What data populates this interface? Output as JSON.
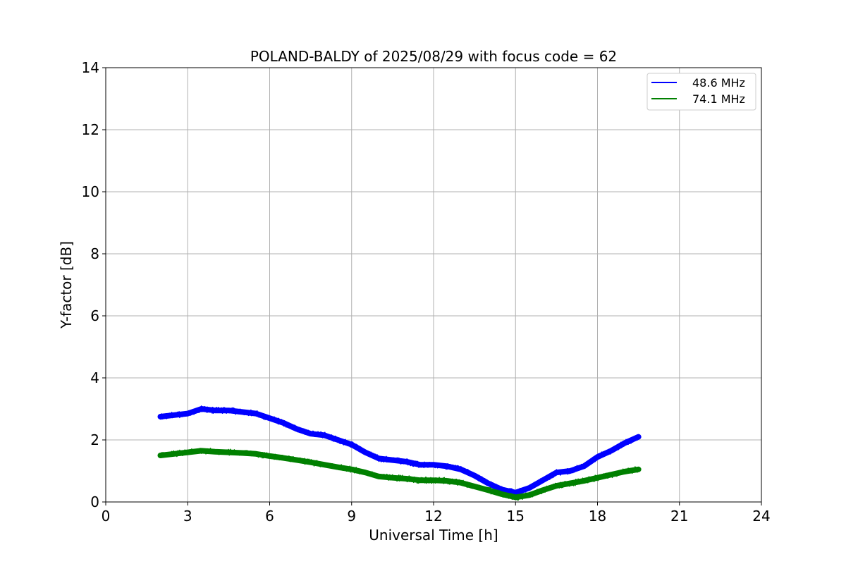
{
  "chart_data": {
    "type": "line",
    "title": "POLAND-BALDY of 2025/08/29 with focus code = 62",
    "xlabel": "Universal Time [h]",
    "ylabel": "Y-factor [dB]",
    "xlim": [
      0,
      24
    ],
    "ylim": [
      0,
      14
    ],
    "xticks": [
      0,
      3,
      6,
      9,
      12,
      15,
      18,
      21,
      24
    ],
    "yticks": [
      0,
      2,
      4,
      6,
      8,
      10,
      12,
      14
    ],
    "grid": true,
    "legend_position": "top-right",
    "series": [
      {
        "name": "48.6 MHz",
        "color": "#0000ff",
        "x": [
          2.0,
          2.5,
          3.0,
          3.5,
          4.0,
          4.5,
          5.0,
          5.5,
          6.0,
          6.5,
          7.0,
          7.5,
          8.0,
          8.5,
          9.0,
          9.5,
          10.0,
          10.5,
          11.0,
          11.5,
          12.0,
          12.5,
          13.0,
          13.5,
          14.0,
          14.5,
          15.0,
          15.5,
          16.0,
          16.5,
          17.0,
          17.5,
          18.0,
          18.5,
          19.0,
          19.5
        ],
        "y": [
          2.75,
          2.8,
          2.85,
          3.0,
          2.95,
          2.95,
          2.9,
          2.85,
          2.7,
          2.55,
          2.35,
          2.2,
          2.15,
          2.0,
          1.85,
          1.6,
          1.4,
          1.35,
          1.3,
          1.2,
          1.2,
          1.15,
          1.05,
          0.85,
          0.6,
          0.4,
          0.3,
          0.45,
          0.7,
          0.95,
          1.0,
          1.15,
          1.45,
          1.65,
          1.9,
          2.1
        ]
      },
      {
        "name": "74.1 MHz",
        "color": "#008000",
        "x": [
          2.0,
          2.5,
          3.0,
          3.5,
          4.0,
          4.5,
          5.0,
          5.5,
          6.0,
          6.5,
          7.0,
          7.5,
          8.0,
          8.5,
          9.0,
          9.5,
          10.0,
          10.5,
          11.0,
          11.5,
          12.0,
          12.5,
          13.0,
          13.5,
          14.0,
          14.5,
          15.0,
          15.5,
          16.0,
          16.5,
          17.0,
          17.5,
          18.0,
          18.5,
          19.0,
          19.5
        ],
        "y": [
          1.5,
          1.55,
          1.6,
          1.65,
          1.62,
          1.6,
          1.58,
          1.55,
          1.48,
          1.42,
          1.35,
          1.28,
          1.2,
          1.12,
          1.05,
          0.95,
          0.82,
          0.78,
          0.75,
          0.7,
          0.7,
          0.68,
          0.62,
          0.5,
          0.38,
          0.25,
          0.15,
          0.22,
          0.38,
          0.52,
          0.6,
          0.68,
          0.78,
          0.88,
          0.98,
          1.05
        ]
      }
    ]
  }
}
